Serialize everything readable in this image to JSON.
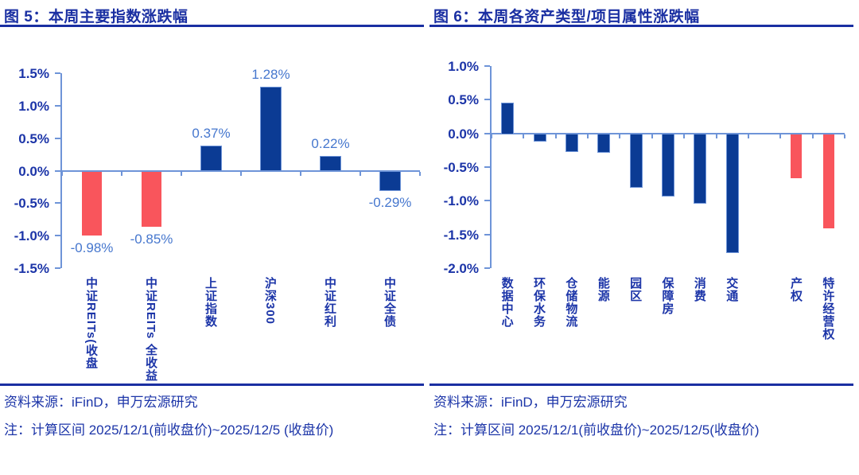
{
  "colors": {
    "title_navy": "#1a2fa2",
    "text_navy": "#1c35a8",
    "bar_navy": "#0b3b94",
    "bar_red": "#f9555c",
    "axis_blue": "#6e94d8",
    "data_label_blue": "#4677ce",
    "divider_navy": "#1a2fa2"
  },
  "panels": [
    {
      "title": "图 5：本周主要指数涨跌幅",
      "source": "资料来源：iFinD，申万宏源研究",
      "note": "注：计算区间 2025/12/1(前收盘价)~2025/12/5 (收盘价)"
    },
    {
      "title": "图 6：本周各资产类型/项目属性涨跌幅",
      "source": "资料来源：iFinD，申万宏源研究",
      "note": "注：计算区间 2025/12/1(前收盘价)~2025/12/5(收盘价)"
    }
  ],
  "chart_data": [
    {
      "type": "bar",
      "title": "图 5：本周主要指数涨跌幅",
      "categories": [
        "中证REITs(收盘",
        "中证REITs 全收益",
        "上证指数",
        "沪深300",
        "中证红利",
        "中证全债"
      ],
      "values": [
        -0.98,
        -0.85,
        0.37,
        1.28,
        0.22,
        -0.29
      ],
      "data_labels": [
        "-0.98%",
        "-0.85%",
        "0.37%",
        "1.28%",
        "0.22%",
        "-0.29%"
      ],
      "bar_colors": [
        "red",
        "red",
        "navy",
        "navy",
        "navy",
        "navy"
      ],
      "ylim": [
        -1.5,
        1.5
      ],
      "yticks": [
        {
          "label": "1.5%",
          "v": 1.5
        },
        {
          "label": "1.0%",
          "v": 1.0
        },
        {
          "label": "0.5%",
          "v": 0.5
        },
        {
          "label": "0.0%",
          "v": 0.0
        },
        {
          "label": "-0.5%",
          "v": -0.5
        },
        {
          "label": "-1.0%",
          "v": -1.0
        },
        {
          "label": "-1.5%",
          "v": -1.5
        }
      ],
      "grid": false,
      "legend": "none",
      "ylabel": "",
      "xlabel": ""
    },
    {
      "type": "bar",
      "title": "图 6：本周各资产类型/项目属性涨跌幅",
      "categories": [
        "数据中心",
        "环保水务",
        "仓储物流",
        "能源",
        "园区",
        "保障房",
        "消费",
        "交通",
        "",
        "产权",
        "特许经营权"
      ],
      "values": [
        0.44,
        -0.1,
        -0.25,
        -0.26,
        -0.78,
        -0.91,
        -1.02,
        -1.75,
        null,
        -0.65,
        -1.4
      ],
      "data_labels": null,
      "bar_colors": [
        "navy",
        "navy",
        "navy",
        "navy",
        "navy",
        "navy",
        "navy",
        "navy",
        null,
        "red",
        "red"
      ],
      "ylim": [
        -2.0,
        1.0
      ],
      "yticks": [
        {
          "label": "1.0%",
          "v": 1.0
        },
        {
          "label": "0.5%",
          "v": 0.5
        },
        {
          "label": "0.0%",
          "v": 0.0
        },
        {
          "label": "-0.5%",
          "v": -0.5
        },
        {
          "label": "-1.0%",
          "v": -1.0
        },
        {
          "label": "-1.5%",
          "v": -1.5
        },
        {
          "label": "-2.0%",
          "v": -2.0
        }
      ],
      "grid": false,
      "legend": "none",
      "ylabel": "",
      "xlabel": ""
    }
  ]
}
